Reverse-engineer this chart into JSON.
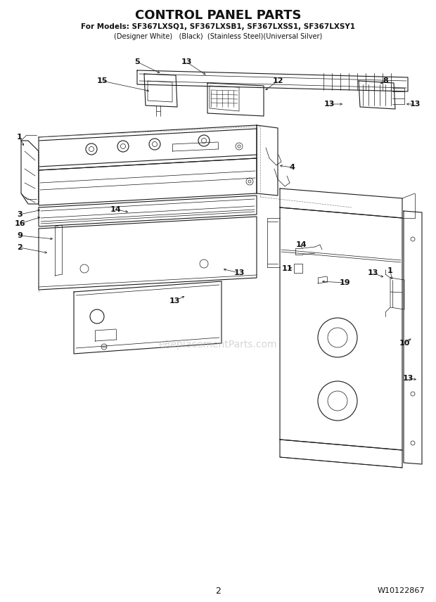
{
  "title": "CONTROL PANEL PARTS",
  "subtitle_line1": "For Models: SF367LXSQ1, SF367LXSB1, SF367LXSS1, SF367LXSY1",
  "subtitle_line2": "(Designer White)   (Black)  (Stainless Steel)(Universal Silver)",
  "page_number": "2",
  "part_number": "W10122867",
  "bg_color": "#ffffff",
  "lc": "#1a1a1a",
  "title_color": "#000000",
  "watermark_text": "eReplacementParts.com",
  "watermark_color": "#bbbbbb",
  "figsize": [
    6.2,
    8.56
  ],
  "dpi": 100
}
